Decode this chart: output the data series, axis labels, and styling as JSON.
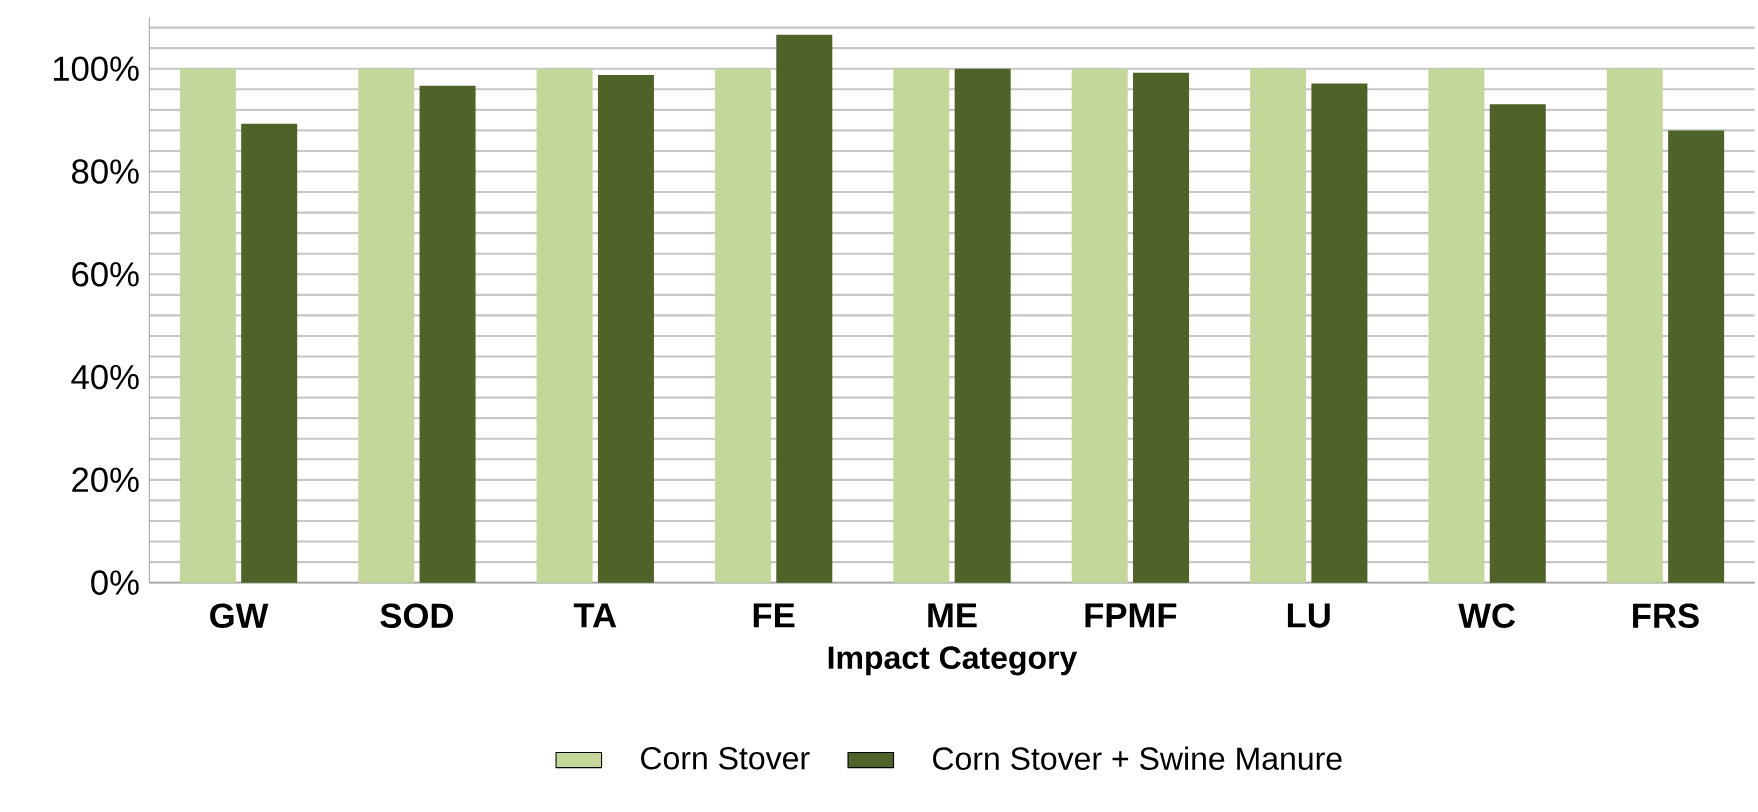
{
  "chart_data": {
    "type": "bar",
    "xlabel": "Impact Category",
    "categories": [
      "GW",
      "SOD",
      "TA",
      "FE",
      "ME",
      "FPMF",
      "LU",
      "WC",
      "FRS"
    ],
    "series": [
      {
        "name": "Corn Stover",
        "color": "#c4d79b",
        "values": [
          100,
          100,
          100,
          100,
          100,
          100,
          100,
          100,
          100
        ]
      },
      {
        "name": "Corn Stover + Swine Manure",
        "color": "#4f6228",
        "values": [
          89.3,
          96.7,
          98.8,
          106.6,
          100,
          99.2,
          97.1,
          93.1,
          88.0
        ]
      }
    ],
    "ylim": [
      0,
      110
    ],
    "yticks": [
      {
        "value": 0,
        "label": "0%"
      },
      {
        "value": 4,
        "label": null
      },
      {
        "value": 8,
        "label": null
      },
      {
        "value": 12,
        "label": null
      },
      {
        "value": 16,
        "label": null
      },
      {
        "value": 20,
        "label": "20%"
      },
      {
        "value": 24,
        "label": null
      },
      {
        "value": 28,
        "label": null
      },
      {
        "value": 32,
        "label": null
      },
      {
        "value": 36,
        "label": null
      },
      {
        "value": 40,
        "label": "40%"
      },
      {
        "value": 44,
        "label": null
      },
      {
        "value": 48,
        "label": null
      },
      {
        "value": 52,
        "label": null
      },
      {
        "value": 56,
        "label": null
      },
      {
        "value": 60,
        "label": "60%"
      },
      {
        "value": 64,
        "label": null
      },
      {
        "value": 68,
        "label": null
      },
      {
        "value": 72,
        "label": null
      },
      {
        "value": 76,
        "label": null
      },
      {
        "value": 80,
        "label": "80%"
      },
      {
        "value": 84,
        "label": null
      },
      {
        "value": 88,
        "label": null
      },
      {
        "value": 92,
        "label": null
      },
      {
        "value": 96,
        "label": null
      },
      {
        "value": 100,
        "label": "100%"
      },
      {
        "value": 104,
        "label": null
      },
      {
        "value": 108,
        "label": null
      }
    ],
    "grid": "y",
    "legend": "bottom"
  }
}
